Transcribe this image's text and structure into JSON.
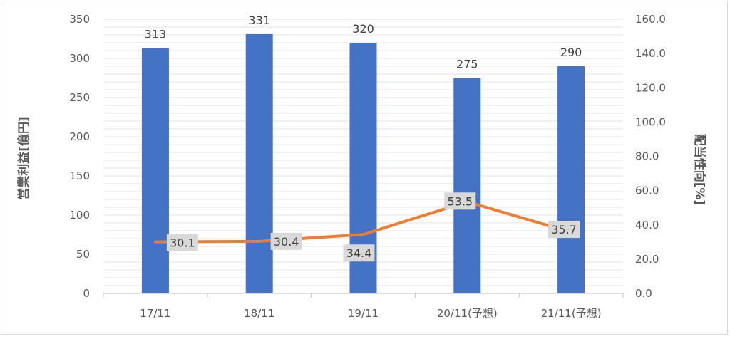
{
  "chart_data": {
    "type": "bar",
    "categories": [
      "17/11",
      "18/11",
      "19/11",
      "20/11(予想)",
      "21/11(予想)"
    ],
    "series": [
      {
        "name": "営業利益",
        "type": "bar",
        "axis": "left",
        "color": "#4472c4",
        "values": [
          313,
          331,
          320,
          275,
          290
        ],
        "labels": [
          "313",
          "331",
          "320",
          "275",
          "290"
        ]
      },
      {
        "name": "配当性向",
        "type": "line",
        "axis": "right",
        "color": "#ed7d31",
        "values": [
          30.1,
          30.4,
          34.4,
          53.5,
          35.7
        ],
        "labels": [
          "30.1",
          "30.4",
          "34.4",
          "53.5",
          "35.7"
        ]
      }
    ],
    "ylabel": "営業利益[億円]",
    "ylabel_right": "配当性向[%]",
    "ylim": [
      0,
      350
    ],
    "ylim_right": [
      0,
      160
    ],
    "yticks": [
      "0",
      "50",
      "100",
      "150",
      "200",
      "250",
      "300",
      "350"
    ],
    "yticks_right": [
      "0.0",
      "20.0",
      "40.0",
      "60.0",
      "80.0",
      "100.0",
      "120.0",
      "140.0",
      "160.0"
    ],
    "grid": true,
    "legend": "none"
  }
}
